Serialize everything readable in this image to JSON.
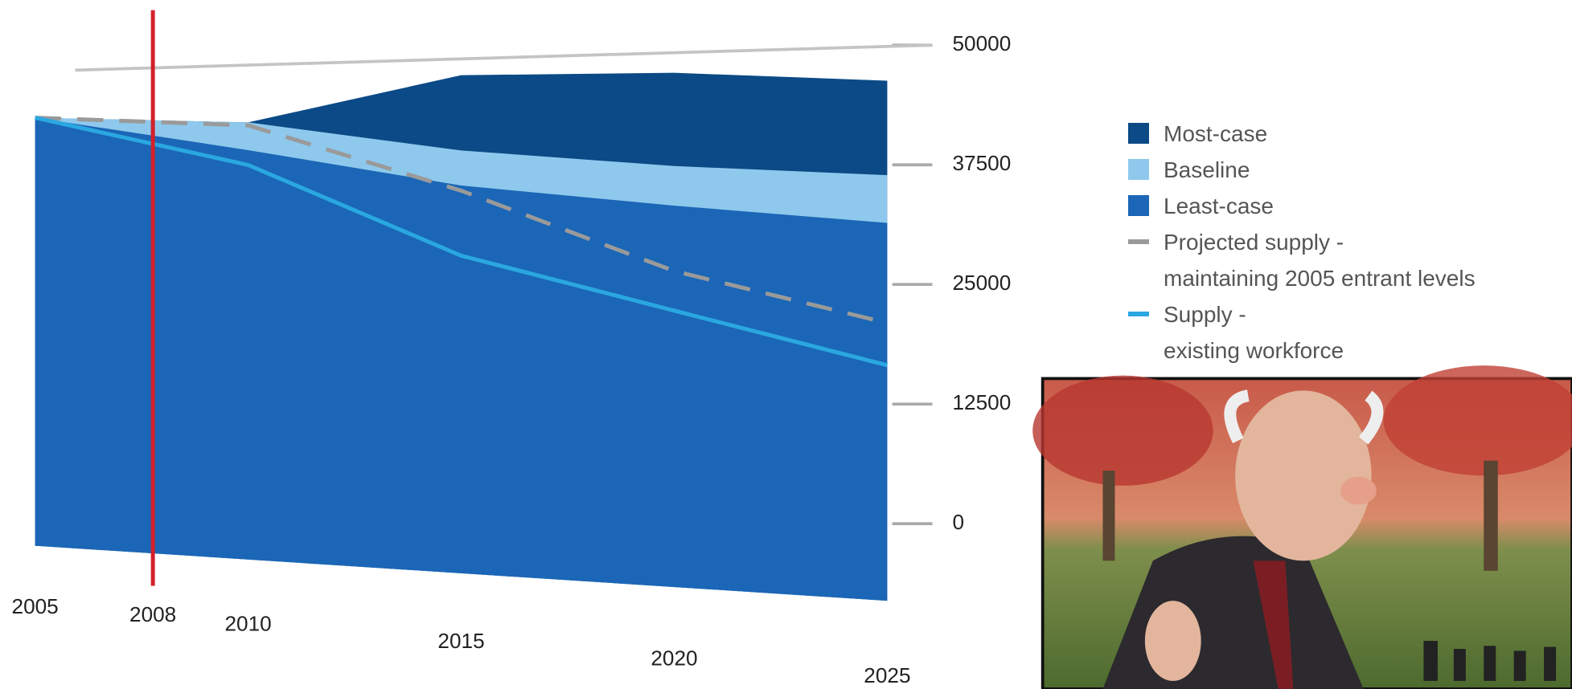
{
  "chart_data": {
    "type": "area",
    "x": [
      2005,
      2010,
      2015,
      2020,
      2025
    ],
    "xticks": [
      2005,
      2010,
      2015,
      2020,
      2025
    ],
    "xlim": [
      2005,
      2025
    ],
    "ylim": [
      0,
      50000
    ],
    "yticks": [
      0,
      12500,
      25000,
      37500,
      50000
    ],
    "series": [
      {
        "name": "Most-case",
        "kind": "area",
        "color": "#0b4a86",
        "values": [
          45000,
          44100,
          48300,
          48000,
          46800
        ]
      },
      {
        "name": "Baseline",
        "kind": "area",
        "color": "#8ec8ec",
        "values": [
          45000,
          44100,
          41000,
          39300,
          38300
        ]
      },
      {
        "name": "Least-case",
        "kind": "area",
        "color": "#1b66b6",
        "values": [
          45000,
          41300,
          37600,
          35600,
          34000
        ]
      },
      {
        "name": "Projected supply -\nmaintaining 2005 entrant levels",
        "kind": "dashed-line",
        "color": "#9a9a9a",
        "values": [
          45000,
          43800,
          37100,
          29500,
          25000
        ]
      },
      {
        "name": "Supply -\nexisting workforce",
        "kind": "line",
        "color": "#2aa7e1",
        "values": [
          45000,
          39800,
          30800,
          25800,
          21200
        ]
      }
    ],
    "marker": {
      "x": 2008,
      "label": "2008",
      "color": "#d3202b"
    }
  }
}
